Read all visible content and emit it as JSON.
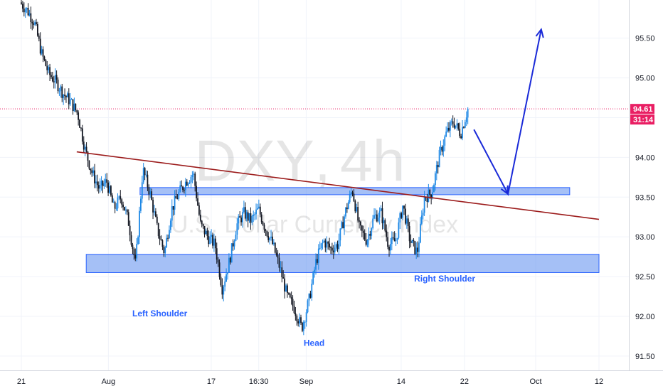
{
  "chart_data": {
    "type": "candlestick",
    "symbol": "DXY",
    "interval": "4h",
    "description": "U.S. Dollar Currency Index",
    "ylim": [
      91.32,
      95.98
    ],
    "yticks": [
      91.5,
      92.0,
      92.5,
      93.0,
      93.5,
      94.0,
      94.5,
      95.0,
      95.5
    ],
    "ytick_labels": [
      "91.50",
      "92.00",
      "92.50",
      "93.00",
      "93.50",
      "94.00",
      "94.50",
      "95.00",
      "95.50"
    ],
    "xlim": [
      -1.0,
      74.0
    ],
    "xticks": [
      {
        "label": "21",
        "x": 1
      },
      {
        "label": "Aug",
        "x": 12
      },
      {
        "label": "17",
        "x": 25
      },
      {
        "label": "16:30",
        "x": 31
      },
      {
        "label": "Sep",
        "x": 37
      },
      {
        "label": "14",
        "x": 49
      },
      {
        "label": "22",
        "x": 57
      },
      {
        "label": "Oct",
        "x": 66
      },
      {
        "label": "12",
        "x": 74
      }
    ],
    "last_price": 94.61,
    "last_price_label": "94.61",
    "countdown_label": "31:14",
    "colors": {
      "up": "#1e88e5",
      "down": "#131722",
      "last_price": "#e91e63",
      "trendline": "#9c1c1c",
      "zone": "#5b8def",
      "arrow": "#1a2ad8"
    },
    "closes": [
      95.95,
      95.85,
      95.7,
      95.3,
      95.05,
      94.95,
      94.8,
      94.7,
      94.55,
      94.1,
      93.8,
      93.6,
      93.7,
      93.35,
      93.5,
      93.2,
      92.65,
      93.85,
      93.55,
      93.1,
      92.8,
      93.35,
      93.55,
      93.7,
      93.8,
      93.15,
      93.0,
      92.9,
      92.35,
      92.7,
      93.15,
      93.3,
      93.2,
      93.35,
      93.1,
      92.9,
      92.6,
      92.25,
      92.1,
      91.85,
      92.2,
      92.7,
      92.95,
      92.85,
      92.9,
      93.3,
      93.6,
      93.1,
      92.95,
      93.25,
      93.3,
      92.9,
      92.95,
      93.4,
      92.95,
      92.8,
      93.5,
      93.55,
      94.0,
      94.3,
      94.45,
      94.3,
      94.61
    ],
    "trendline": {
      "from": [
        8,
        94.07
      ],
      "to": [
        74,
        93.22
      ]
    },
    "zones": [
      {
        "from_x": 16,
        "to_x": 70.3,
        "y_low": 93.53,
        "y_high": 93.62
      },
      {
        "from_x": 9.2,
        "to_x": 74,
        "y_low": 92.55,
        "y_high": 92.78
      }
    ],
    "projection": [
      [
        58.2,
        94.35
      ],
      [
        62.5,
        93.54
      ],
      [
        66.7,
        95.61
      ]
    ],
    "annotations": [
      {
        "text": "Left Shoulder",
        "x": 18.5,
        "y": 92.0
      },
      {
        "text": "Head",
        "x": 38.0,
        "y": 91.63
      },
      {
        "text": "Right Shoulder",
        "x": 54.5,
        "y": 92.44
      }
    ]
  }
}
